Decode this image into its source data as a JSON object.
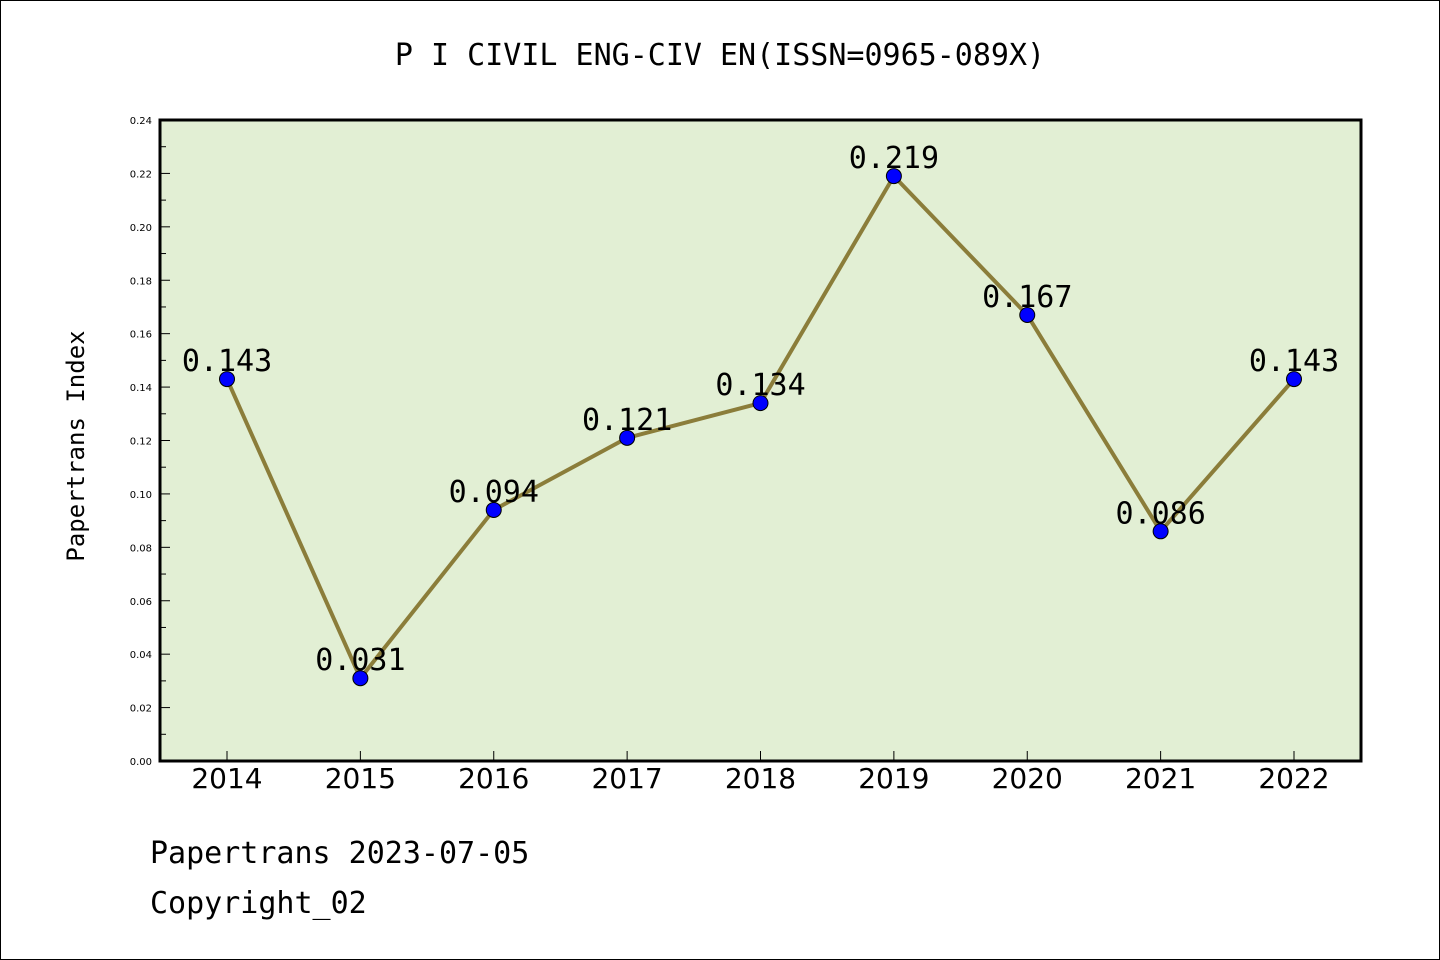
{
  "chart_data": {
    "type": "line",
    "title": "P I CIVIL ENG-CIV EN(ISSN=0965-089X)",
    "xlabel": "",
    "ylabel": "Papertrans Index",
    "categories": [
      "2014",
      "2015",
      "2016",
      "2017",
      "2018",
      "2019",
      "2020",
      "2021",
      "2022"
    ],
    "values": [
      0.143,
      0.031,
      0.094,
      0.121,
      0.134,
      0.219,
      0.167,
      0.086,
      0.143
    ],
    "data_labels": [
      "0.143",
      "0.031",
      "0.094",
      "0.121",
      "0.134",
      "0.219",
      "0.167",
      "0.086",
      "0.143"
    ],
    "ylim": [
      0,
      0.24
    ],
    "yticks": [
      "0.00",
      "0.02",
      "0.04",
      "0.06",
      "0.08",
      "0.10",
      "0.12",
      "0.14",
      "0.16",
      "0.18",
      "0.20",
      "0.22",
      "0.24"
    ],
    "grid": false,
    "legend": "none",
    "colors": {
      "plot_background": "#e2efd4",
      "line": "#8b7d3a",
      "marker": "#0000ff"
    }
  },
  "footer": {
    "line1": "Papertrans 2023-07-05",
    "line2": "Copyright_02"
  }
}
